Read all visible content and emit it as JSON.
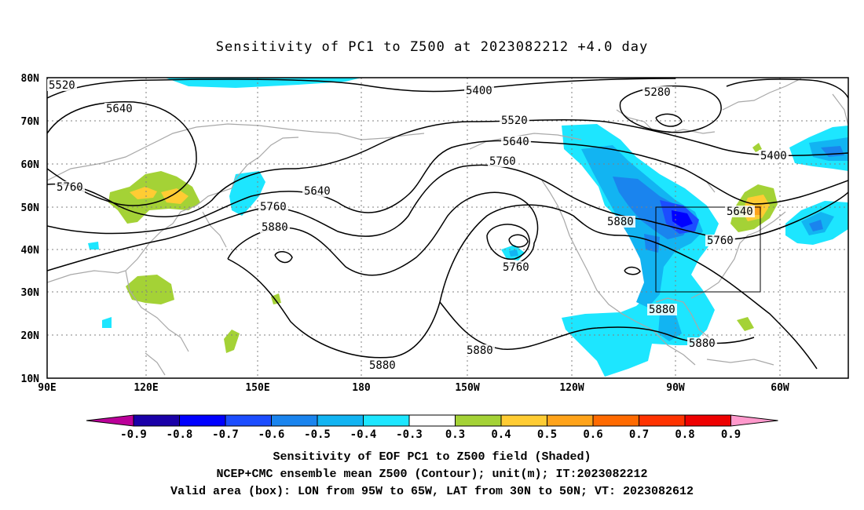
{
  "title": "Sensitivity of PC1 to Z500 at 2023082212 +4.0 day",
  "captions": [
    "Sensitivity of EOF PC1 to Z500 field (Shaded)",
    "NCEP+CMC ensemble mean Z500 (Contour); unit(m); IT:2023082212",
    "Valid area (box): LON from 95W to 65W, LAT from 30N to 50N; VT: 2023082612"
  ],
  "map": {
    "lon_labels": [
      "90E",
      "120E",
      "150E",
      "180",
      "150W",
      "120W",
      "90W",
      "60W"
    ],
    "lat_labels": [
      "80N",
      "70N",
      "60N",
      "50N",
      "40N",
      "30N",
      "20N",
      "10N"
    ],
    "box": {
      "lon_from": "95W",
      "lon_to": "65W",
      "lat_from": "30N",
      "lat_to": "50N"
    },
    "contour_labels": [
      "5520",
      "5640",
      "5760",
      "5640",
      "5760",
      "5880",
      "5400",
      "5520",
      "5640",
      "5760",
      "5280",
      "5400",
      "5640",
      "5760",
      "5880",
      "5760",
      "5880",
      "5880",
      "5880",
      "5880"
    ]
  },
  "colorbar": {
    "labels": [
      "-0.9",
      "-0.8",
      "-0.7",
      "-0.6",
      "-0.5",
      "-0.4",
      "-0.3",
      "0.3",
      "0.4",
      "0.5",
      "0.6",
      "0.7",
      "0.8",
      "0.9"
    ],
    "colors": [
      "#1a00a8",
      "#0000ff",
      "#1c4dff",
      "#1a84ee",
      "#12b4f2",
      "#1de6ff",
      "#ffffff",
      "#a4d236",
      "#ffcc33",
      "#ffa31a",
      "#ff6a00",
      "#ff3300",
      "#ee0000"
    ],
    "low_end": "#bb0099",
    "high_end": "#ff99cc"
  }
}
